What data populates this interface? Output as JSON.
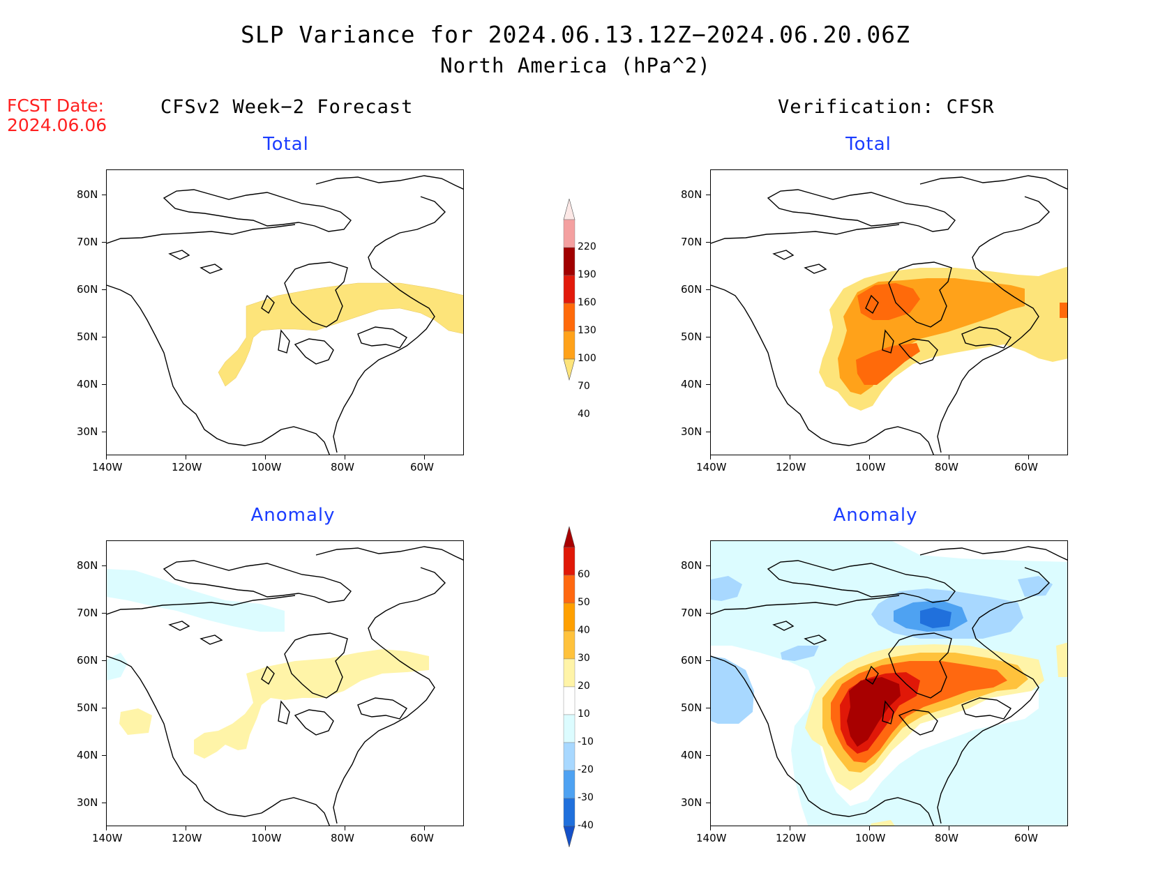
{
  "title": {
    "line1": "SLP Variance for 2024.06.13.12Z−2024.06.20.06Z",
    "line2": "North America (hPa^2)"
  },
  "forecast_date": {
    "label": "FCST Date:",
    "value": "2024.06.06"
  },
  "columns": {
    "left": "CFSv2 Week−2 Forecast",
    "right": "Verification: CFSR"
  },
  "panels": {
    "fc_total": {
      "title": "Total"
    },
    "ver_total": {
      "title": "Total"
    },
    "fc_anom": {
      "title": "Anomaly"
    },
    "ver_anom": {
      "title": "Anomaly"
    }
  },
  "axes": {
    "lat_labels": [
      "80N",
      "70N",
      "60N",
      "50N",
      "40N",
      "30N"
    ],
    "lon_labels": [
      "140W",
      "120W",
      "100W",
      "80W",
      "60W"
    ]
  },
  "colorbars": {
    "total": {
      "labels": [
        "220",
        "190",
        "160",
        "130",
        "100",
        "70",
        "40"
      ],
      "colors": [
        "#fce8e6",
        "#f4a0a0",
        "#a10000",
        "#e21a0b",
        "#ff6a0a",
        "#ffa21a",
        "#fde47a"
      ]
    },
    "anomaly": {
      "labels": [
        "60",
        "50",
        "40",
        "30",
        "20",
        "10",
        "-10",
        "-20",
        "-30",
        "-40"
      ],
      "colors": [
        "#a80000",
        "#e01808",
        "#ff6810",
        "#ffa000",
        "#ffc23c",
        "#fff4a8",
        "#ffffff",
        "#dcfcff",
        "#a8d8ff",
        "#4ea2f2",
        "#2070dc",
        "#1450c8"
      ]
    }
  },
  "colors": {
    "title_blue": "#1a3cff",
    "fcst_red": "#ff2020"
  }
}
